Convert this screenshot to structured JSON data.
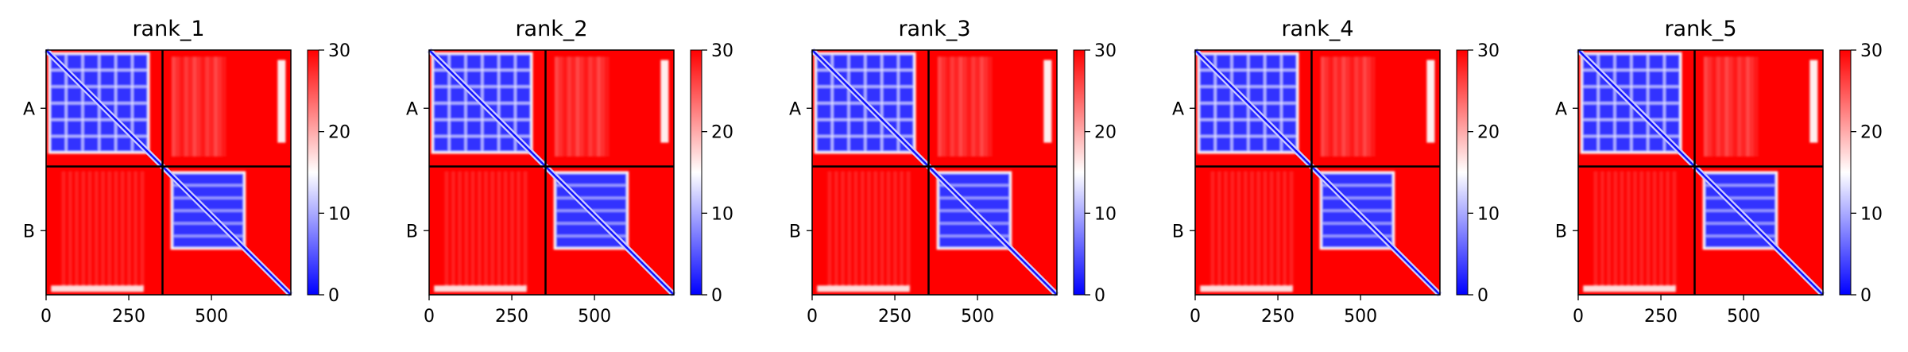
{
  "colors": {
    "low": "#0000ff",
    "mid": "#ffffff",
    "high": "#ff0000",
    "divider": "#000000"
  },
  "chart_data": [
    {
      "type": "heatmap",
      "title": "rank_1",
      "xlim": [
        0,
        740
      ],
      "x_ticks": [
        0,
        250,
        500
      ],
      "y_tick_labels": [
        "A",
        "B"
      ],
      "chain_boundary": 352,
      "colorbar": {
        "min": 0,
        "max": 30,
        "ticks": [
          0,
          10,
          20,
          30
        ]
      },
      "blocks": [
        {
          "name": "A-A",
          "value_range": [
            0,
            5
          ]
        },
        {
          "name": "A-B",
          "value_range": [
            24,
            30
          ]
        },
        {
          "name": "B-A",
          "value_range": [
            24,
            30
          ]
        },
        {
          "name": "B-B",
          "value_range": [
            0,
            5
          ]
        }
      ]
    },
    {
      "type": "heatmap",
      "title": "rank_2",
      "xlim": [
        0,
        740
      ],
      "x_ticks": [
        0,
        250,
        500
      ],
      "y_tick_labels": [
        "A",
        "B"
      ],
      "chain_boundary": 352,
      "colorbar": {
        "min": 0,
        "max": 30,
        "ticks": [
          0,
          10,
          20,
          30
        ]
      },
      "blocks": [
        {
          "name": "A-A",
          "value_range": [
            0,
            5
          ]
        },
        {
          "name": "A-B",
          "value_range": [
            24,
            30
          ]
        },
        {
          "name": "B-A",
          "value_range": [
            24,
            30
          ]
        },
        {
          "name": "B-B",
          "value_range": [
            0,
            5
          ]
        }
      ]
    },
    {
      "type": "heatmap",
      "title": "rank_3",
      "xlim": [
        0,
        740
      ],
      "x_ticks": [
        0,
        250,
        500
      ],
      "y_tick_labels": [
        "A",
        "B"
      ],
      "chain_boundary": 352,
      "colorbar": {
        "min": 0,
        "max": 30,
        "ticks": [
          0,
          10,
          20,
          30
        ]
      },
      "blocks": [
        {
          "name": "A-A",
          "value_range": [
            0,
            5
          ]
        },
        {
          "name": "A-B",
          "value_range": [
            24,
            30
          ]
        },
        {
          "name": "B-A",
          "value_range": [
            24,
            30
          ]
        },
        {
          "name": "B-B",
          "value_range": [
            0,
            5
          ]
        }
      ]
    },
    {
      "type": "heatmap",
      "title": "rank_4",
      "xlim": [
        0,
        740
      ],
      "x_ticks": [
        0,
        250,
        500
      ],
      "y_tick_labels": [
        "A",
        "B"
      ],
      "chain_boundary": 352,
      "colorbar": {
        "min": 0,
        "max": 30,
        "ticks": [
          0,
          10,
          20,
          30
        ]
      },
      "blocks": [
        {
          "name": "A-A",
          "value_range": [
            0,
            5
          ]
        },
        {
          "name": "A-B",
          "value_range": [
            24,
            30
          ]
        },
        {
          "name": "B-A",
          "value_range": [
            24,
            30
          ]
        },
        {
          "name": "B-B",
          "value_range": [
            0,
            5
          ]
        }
      ]
    },
    {
      "type": "heatmap",
      "title": "rank_5",
      "xlim": [
        0,
        740
      ],
      "x_ticks": [
        0,
        250,
        500
      ],
      "y_tick_labels": [
        "A",
        "B"
      ],
      "chain_boundary": 352,
      "colorbar": {
        "min": 0,
        "max": 30,
        "ticks": [
          0,
          10,
          20,
          30
        ]
      },
      "blocks": [
        {
          "name": "A-A",
          "value_range": [
            0,
            5
          ]
        },
        {
          "name": "A-B",
          "value_range": [
            24,
            30
          ]
        },
        {
          "name": "B-A",
          "value_range": [
            24,
            30
          ]
        },
        {
          "name": "B-B",
          "value_range": [
            0,
            5
          ]
        }
      ]
    }
  ]
}
